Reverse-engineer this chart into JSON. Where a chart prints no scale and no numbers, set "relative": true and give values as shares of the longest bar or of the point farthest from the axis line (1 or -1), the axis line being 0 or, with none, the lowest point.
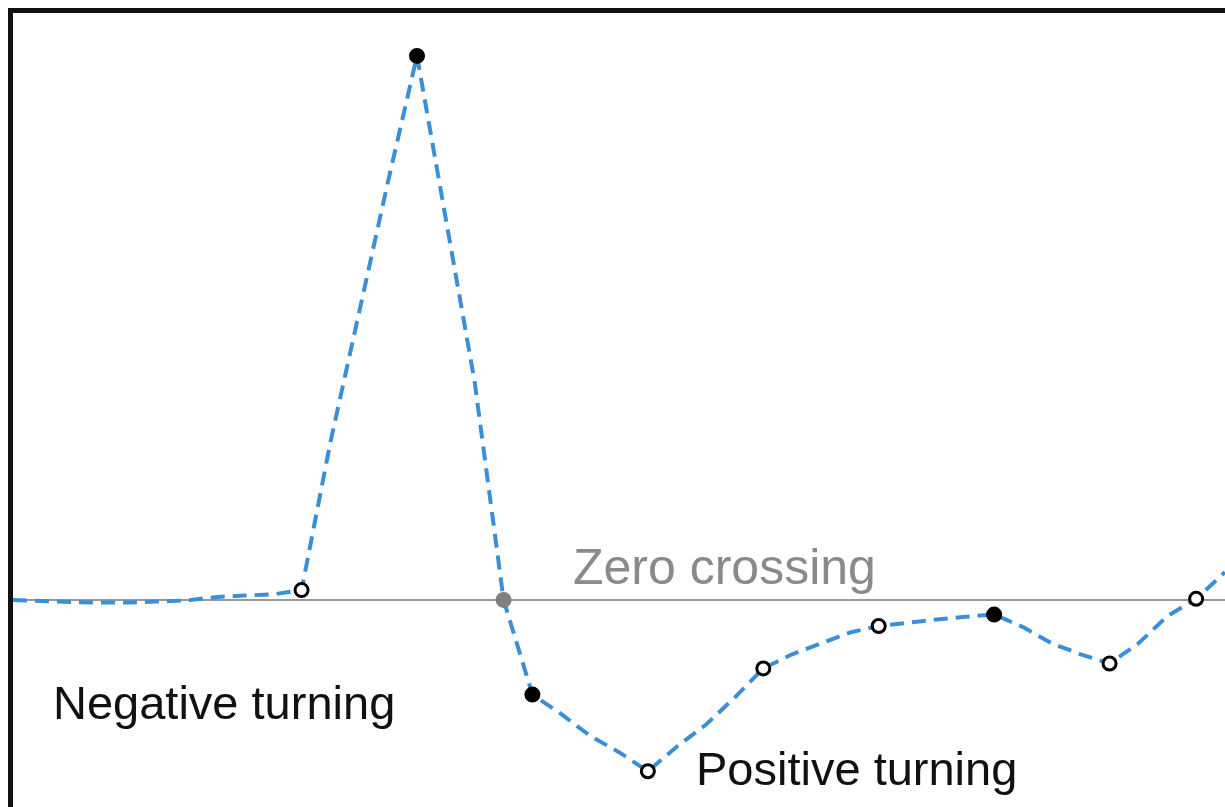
{
  "chart_data": {
    "type": "line",
    "relative": true,
    "line_style": "dashed",
    "categories": [
      null,
      null,
      null,
      null,
      null,
      null,
      null,
      null,
      null,
      null,
      null,
      null,
      null,
      null,
      null,
      null,
      null,
      null,
      null,
      null,
      null,
      null,
      null,
      null,
      null,
      null,
      null,
      null,
      null,
      null,
      null,
      null,
      null,
      null,
      null,
      null,
      null,
      null,
      null,
      null,
      null,
      null,
      null
    ],
    "series": [
      {
        "color": "#3a8fd6",
        "values": [
          0,
          -0.002,
          -0.004,
          -0.005,
          -0.005,
          -0.003,
          -0.001,
          0.005,
          0.008,
          0.01,
          0.018,
          0.29,
          0.53,
          0.77,
          1,
          0.7,
          0.4,
          0,
          -0.174,
          -0.21,
          -0.25,
          -0.28,
          -0.315,
          -0.27,
          -0.23,
          -0.18,
          -0.126,
          -0.1,
          -0.08,
          -0.06,
          -0.048,
          -0.042,
          -0.036,
          -0.031,
          -0.027,
          -0.05,
          -0.08,
          -0.1,
          -0.117,
          -0.08,
          -0.03,
          0.002,
          0.051
        ],
        "colors": [
          null,
          null,
          null,
          null,
          null,
          null,
          null,
          null,
          null,
          null,
          "#ffffff",
          null,
          null,
          null,
          "#000000",
          null,
          null,
          "#808080",
          "#000000",
          null,
          null,
          null,
          "#ffffff",
          null,
          null,
          null,
          "#ffffff",
          null,
          null,
          null,
          "#ffffff",
          null,
          null,
          null,
          "#000000",
          null,
          null,
          null,
          "#ffffff",
          null,
          null,
          "#ffffff",
          null
        ]
      }
    ],
    "annotations": [
      "Zero crossing",
      "Negative turning",
      "Positive turning"
    ]
  }
}
